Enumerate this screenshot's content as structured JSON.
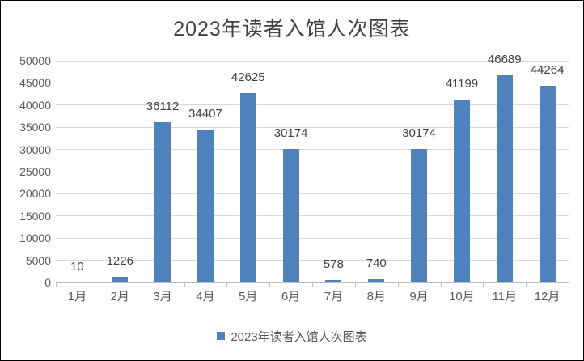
{
  "chart_data": {
    "type": "bar",
    "title": "2023年读者入馆人次图表",
    "categories": [
      "1月",
      "2月",
      "3月",
      "4月",
      "5月",
      "6月",
      "7月",
      "8月",
      "9月",
      "10月",
      "11月",
      "12月"
    ],
    "values": [
      10,
      1226,
      36112,
      34407,
      42625,
      30174,
      578,
      740,
      30174,
      41199,
      46689,
      44264
    ],
    "series": [
      {
        "name": "2023年读者入馆人次图表",
        "values": [
          10,
          1226,
          36112,
          34407,
          42625,
          30174,
          578,
          740,
          30174,
          41199,
          46689,
          44264
        ]
      }
    ],
    "data_labels": [
      "10",
      "1226",
      "36112",
      "34407",
      "42625",
      "30174",
      "578",
      "740",
      "30174",
      "41199",
      "46689",
      "44264"
    ],
    "xlabel": "",
    "ylabel": "",
    "ylim": [
      0,
      50000
    ],
    "ytick_step": 5000,
    "ytick_labels": [
      "0",
      "5000",
      "10000",
      "15000",
      "20000",
      "25000",
      "30000",
      "35000",
      "40000",
      "45000",
      "50000"
    ],
    "grid": true,
    "legend": [
      "2023年读者入馆人次图表"
    ],
    "legend_position": "bottom",
    "colors": {
      "bar": "#4F81BD",
      "gridline": "#D9D9D9",
      "axis_line": "#BFBFBF",
      "title_text": "#404040",
      "axis_text": "#595959",
      "data_label_text": "#404040",
      "background": "#FFFFFF",
      "border": "#000000"
    }
  }
}
